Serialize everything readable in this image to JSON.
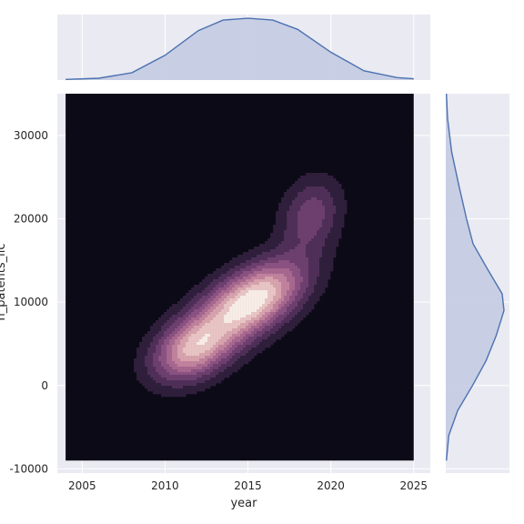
{
  "chart_data": {
    "type": "kde-jointplot",
    "xlabel": "year",
    "ylabel": "n_patents_lic",
    "x_ticks": [
      2005,
      2010,
      2015,
      2020,
      2025
    ],
    "y_ticks": [
      -10000,
      0,
      10000,
      20000,
      30000
    ],
    "xlim": [
      2003.5,
      2026
    ],
    "ylim": [
      -10500,
      35000
    ],
    "kde_extent": {
      "x": [
        2004,
        2025
      ],
      "y": [
        -9000,
        35000
      ]
    },
    "contour_peaks": [
      {
        "x": 2015.5,
        "y": 10500,
        "sx": 2.1,
        "sy": 3200,
        "rho": 0.5,
        "w": 1.0
      },
      {
        "x": 2011.6,
        "y": 4200,
        "sx": 1.6,
        "sy": 2600,
        "rho": 0.3,
        "w": 0.72
      },
      {
        "x": 2018.8,
        "y": 20500,
        "sx": 1.3,
        "sy": 3200,
        "rho": 0.2,
        "w": 0.45
      },
      {
        "x": 2013.2,
        "y": 7000,
        "sx": 2.6,
        "sy": 4200,
        "rho": 0.6,
        "w": 0.35
      }
    ],
    "marginal_x": [
      {
        "x": 2004,
        "d": 0.01
      },
      {
        "x": 2006,
        "d": 0.03
      },
      {
        "x": 2008,
        "d": 0.12
      },
      {
        "x": 2010,
        "d": 0.4
      },
      {
        "x": 2012,
        "d": 0.8
      },
      {
        "x": 2013.5,
        "d": 0.97
      },
      {
        "x": 2015,
        "d": 1.0
      },
      {
        "x": 2016.5,
        "d": 0.97
      },
      {
        "x": 2018,
        "d": 0.82
      },
      {
        "x": 2020,
        "d": 0.45
      },
      {
        "x": 2022,
        "d": 0.15
      },
      {
        "x": 2024,
        "d": 0.04
      },
      {
        "x": 2025,
        "d": 0.02
      }
    ],
    "marginal_y": [
      {
        "y": -9000,
        "d": 0.01
      },
      {
        "y": -6000,
        "d": 0.05
      },
      {
        "y": -3000,
        "d": 0.2
      },
      {
        "y": 0,
        "d": 0.45
      },
      {
        "y": 3000,
        "d": 0.68
      },
      {
        "y": 6000,
        "d": 0.85
      },
      {
        "y": 9000,
        "d": 0.98
      },
      {
        "y": 11000,
        "d": 0.95
      },
      {
        "y": 14000,
        "d": 0.7
      },
      {
        "y": 17000,
        "d": 0.46
      },
      {
        "y": 20000,
        "d": 0.35
      },
      {
        "y": 24000,
        "d": 0.22
      },
      {
        "y": 28000,
        "d": 0.1
      },
      {
        "y": 32000,
        "d": 0.03
      },
      {
        "y": 35000,
        "d": 0.01
      }
    ],
    "colors": {
      "panel_bg": "#eaeaf2",
      "marginal_line": "#4c72b0",
      "marginal_fill": "#c4cbe2",
      "kde_levels": [
        "#0c0a16",
        "#2f1f3c",
        "#4f2f58",
        "#6d3f6f",
        "#8a5281",
        "#a7688f",
        "#c0829c",
        "#d6a3ad",
        "#e8c4c4",
        "#f7ece6"
      ]
    }
  }
}
